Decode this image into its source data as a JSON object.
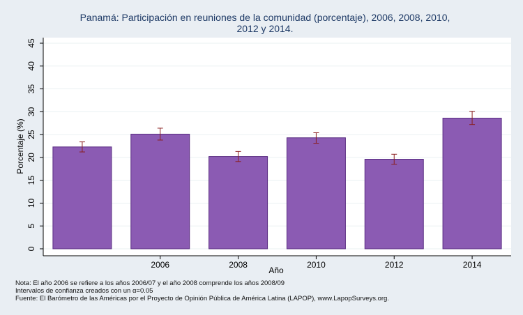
{
  "chart_data": {
    "type": "bar",
    "title": "Panamá: Participación en reuniones de la comunidad (porcentaje), 2006, 2008, 2010, 2012 y 2014.",
    "xlabel": "Año",
    "ylabel": "Porcentaje (%)",
    "ylim": [
      0,
      45
    ],
    "yticks": [
      "0",
      "5",
      "10",
      "15",
      "20",
      "25",
      "30",
      "35",
      "40",
      "45"
    ],
    "categories": [
      "",
      "2006",
      "2008",
      "2010",
      "2012",
      "2014"
    ],
    "values": [
      22.3,
      25.1,
      20.2,
      24.3,
      19.6,
      28.6
    ],
    "ci_low": [
      21.2,
      23.8,
      19.1,
      23.1,
      18.5,
      27.2
    ],
    "ci_high": [
      23.4,
      26.4,
      21.3,
      25.4,
      20.7,
      30.1
    ],
    "grid": true,
    "colors": {
      "bar": "#8b5bb3",
      "bar_edge": "#5a2d82",
      "errorbar": "#8a1e1e",
      "background": "#e9eef3",
      "plot_bg": "#ffffff"
    }
  },
  "notes": [
    "Nota: El año 2006 se refiere a los años 2006/07 y el año 2008 comprende los años 2008/09",
    "Intervalos de confianza creados con un α=0.05",
    "Fuente: El Barómetro de las Américas por el Proyecto de Opinión Pública de América Latina (LAPOP), www.LapopSurveys.org."
  ]
}
